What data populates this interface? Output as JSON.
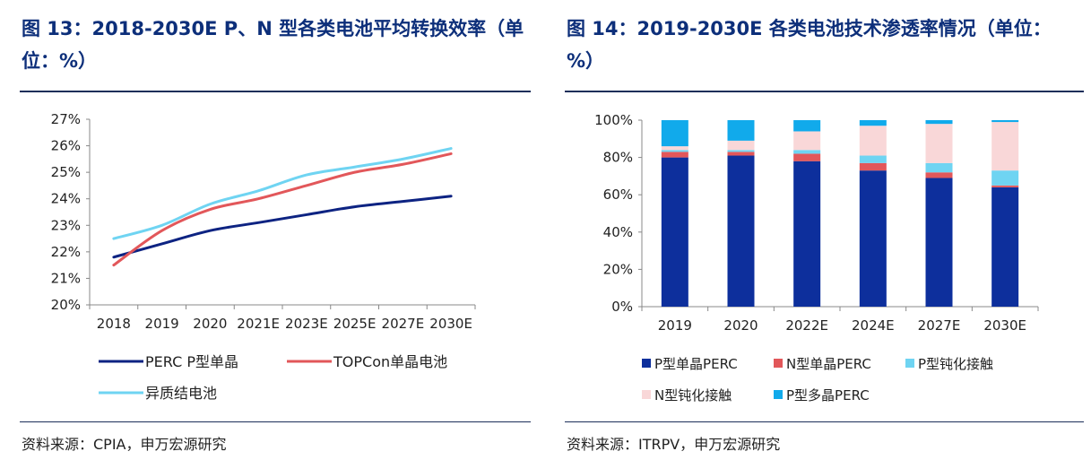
{
  "left": {
    "title": "图 13：2018-2030E P、N 型各类电池平均转换效率（单位：%）",
    "source": "资料来源：CPIA，申万宏源研究",
    "chart_data": {
      "type": "line",
      "categories": [
        "2018",
        "2019",
        "2020",
        "2021E",
        "2023E",
        "2025E",
        "2027E",
        "2030E"
      ],
      "y_tick_labels": [
        "20%",
        "21%",
        "22%",
        "23%",
        "24%",
        "25%",
        "26%",
        "27%"
      ],
      "ylim": [
        20,
        27
      ],
      "series": [
        {
          "name": "PERC P型单晶",
          "color": "#0d2382",
          "values": [
            21.8,
            22.3,
            22.8,
            23.1,
            23.4,
            23.7,
            23.9,
            24.1
          ]
        },
        {
          "name": "TOPCon单晶电池",
          "color": "#e2575a",
          "values": [
            21.5,
            22.8,
            23.6,
            24.0,
            24.5,
            25.0,
            25.3,
            25.7
          ]
        },
        {
          "name": "异质结电池",
          "color": "#6fd4f2",
          "values": [
            22.5,
            23.0,
            23.8,
            24.3,
            24.9,
            25.2,
            25.5,
            25.9
          ]
        }
      ]
    }
  },
  "right": {
    "title": "图 14：2019-2030E 各类电池技术渗透率情况（单位：%）",
    "source": "资料来源：ITRPV，申万宏源研究",
    "chart_data": {
      "type": "bar",
      "stacked": true,
      "categories": [
        "2019",
        "2020",
        "2022E",
        "2024E",
        "2027E",
        "2030E"
      ],
      "y_tick_labels": [
        "0%",
        "20%",
        "40%",
        "60%",
        "80%",
        "100%"
      ],
      "ylim": [
        0,
        100
      ],
      "series": [
        {
          "name": "P型单晶PERC",
          "color": "#0d2f9c",
          "values": [
            80,
            81,
            78,
            73,
            69,
            64
          ]
        },
        {
          "name": "N型单晶PERC",
          "color": "#e2575a",
          "values": [
            3,
            2,
            4,
            4,
            3,
            1
          ]
        },
        {
          "name": "P型钝化接触",
          "color": "#6fd4f2",
          "values": [
            1,
            1,
            2,
            4,
            5,
            8
          ]
        },
        {
          "name": "N型钝化接触",
          "color": "#f9d7d8",
          "values": [
            2,
            5,
            10,
            16,
            21,
            26
          ]
        },
        {
          "name": "P型多晶PERC",
          "color": "#11aaeb",
          "values": [
            14,
            11,
            6,
            3,
            2,
            1
          ]
        }
      ]
    }
  }
}
